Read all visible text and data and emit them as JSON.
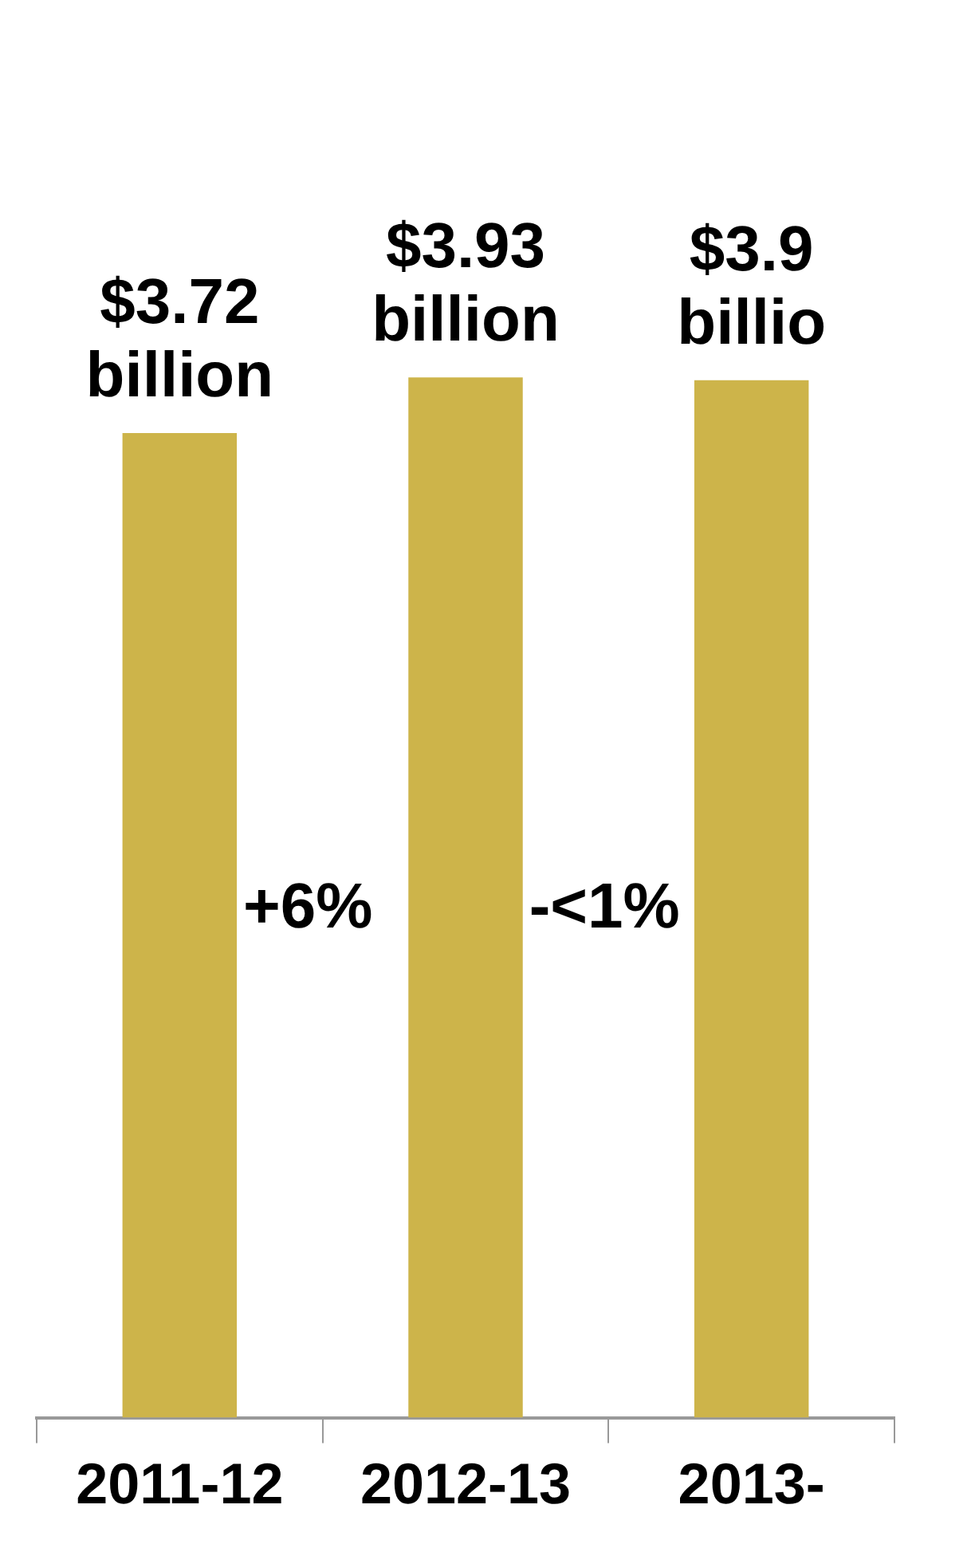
{
  "chart_data": {
    "type": "bar",
    "categories": [
      "2011-12",
      "2012-13",
      "2013-"
    ],
    "values": [
      3.72,
      3.93,
      3.92
    ],
    "value_labels": [
      "$3.72 billion",
      "$3.93 billion",
      "$3.9 billio"
    ],
    "annotations": [
      "+6%",
      "-<1%"
    ],
    "color": "#cdb44a",
    "grid": false,
    "legend": false
  }
}
